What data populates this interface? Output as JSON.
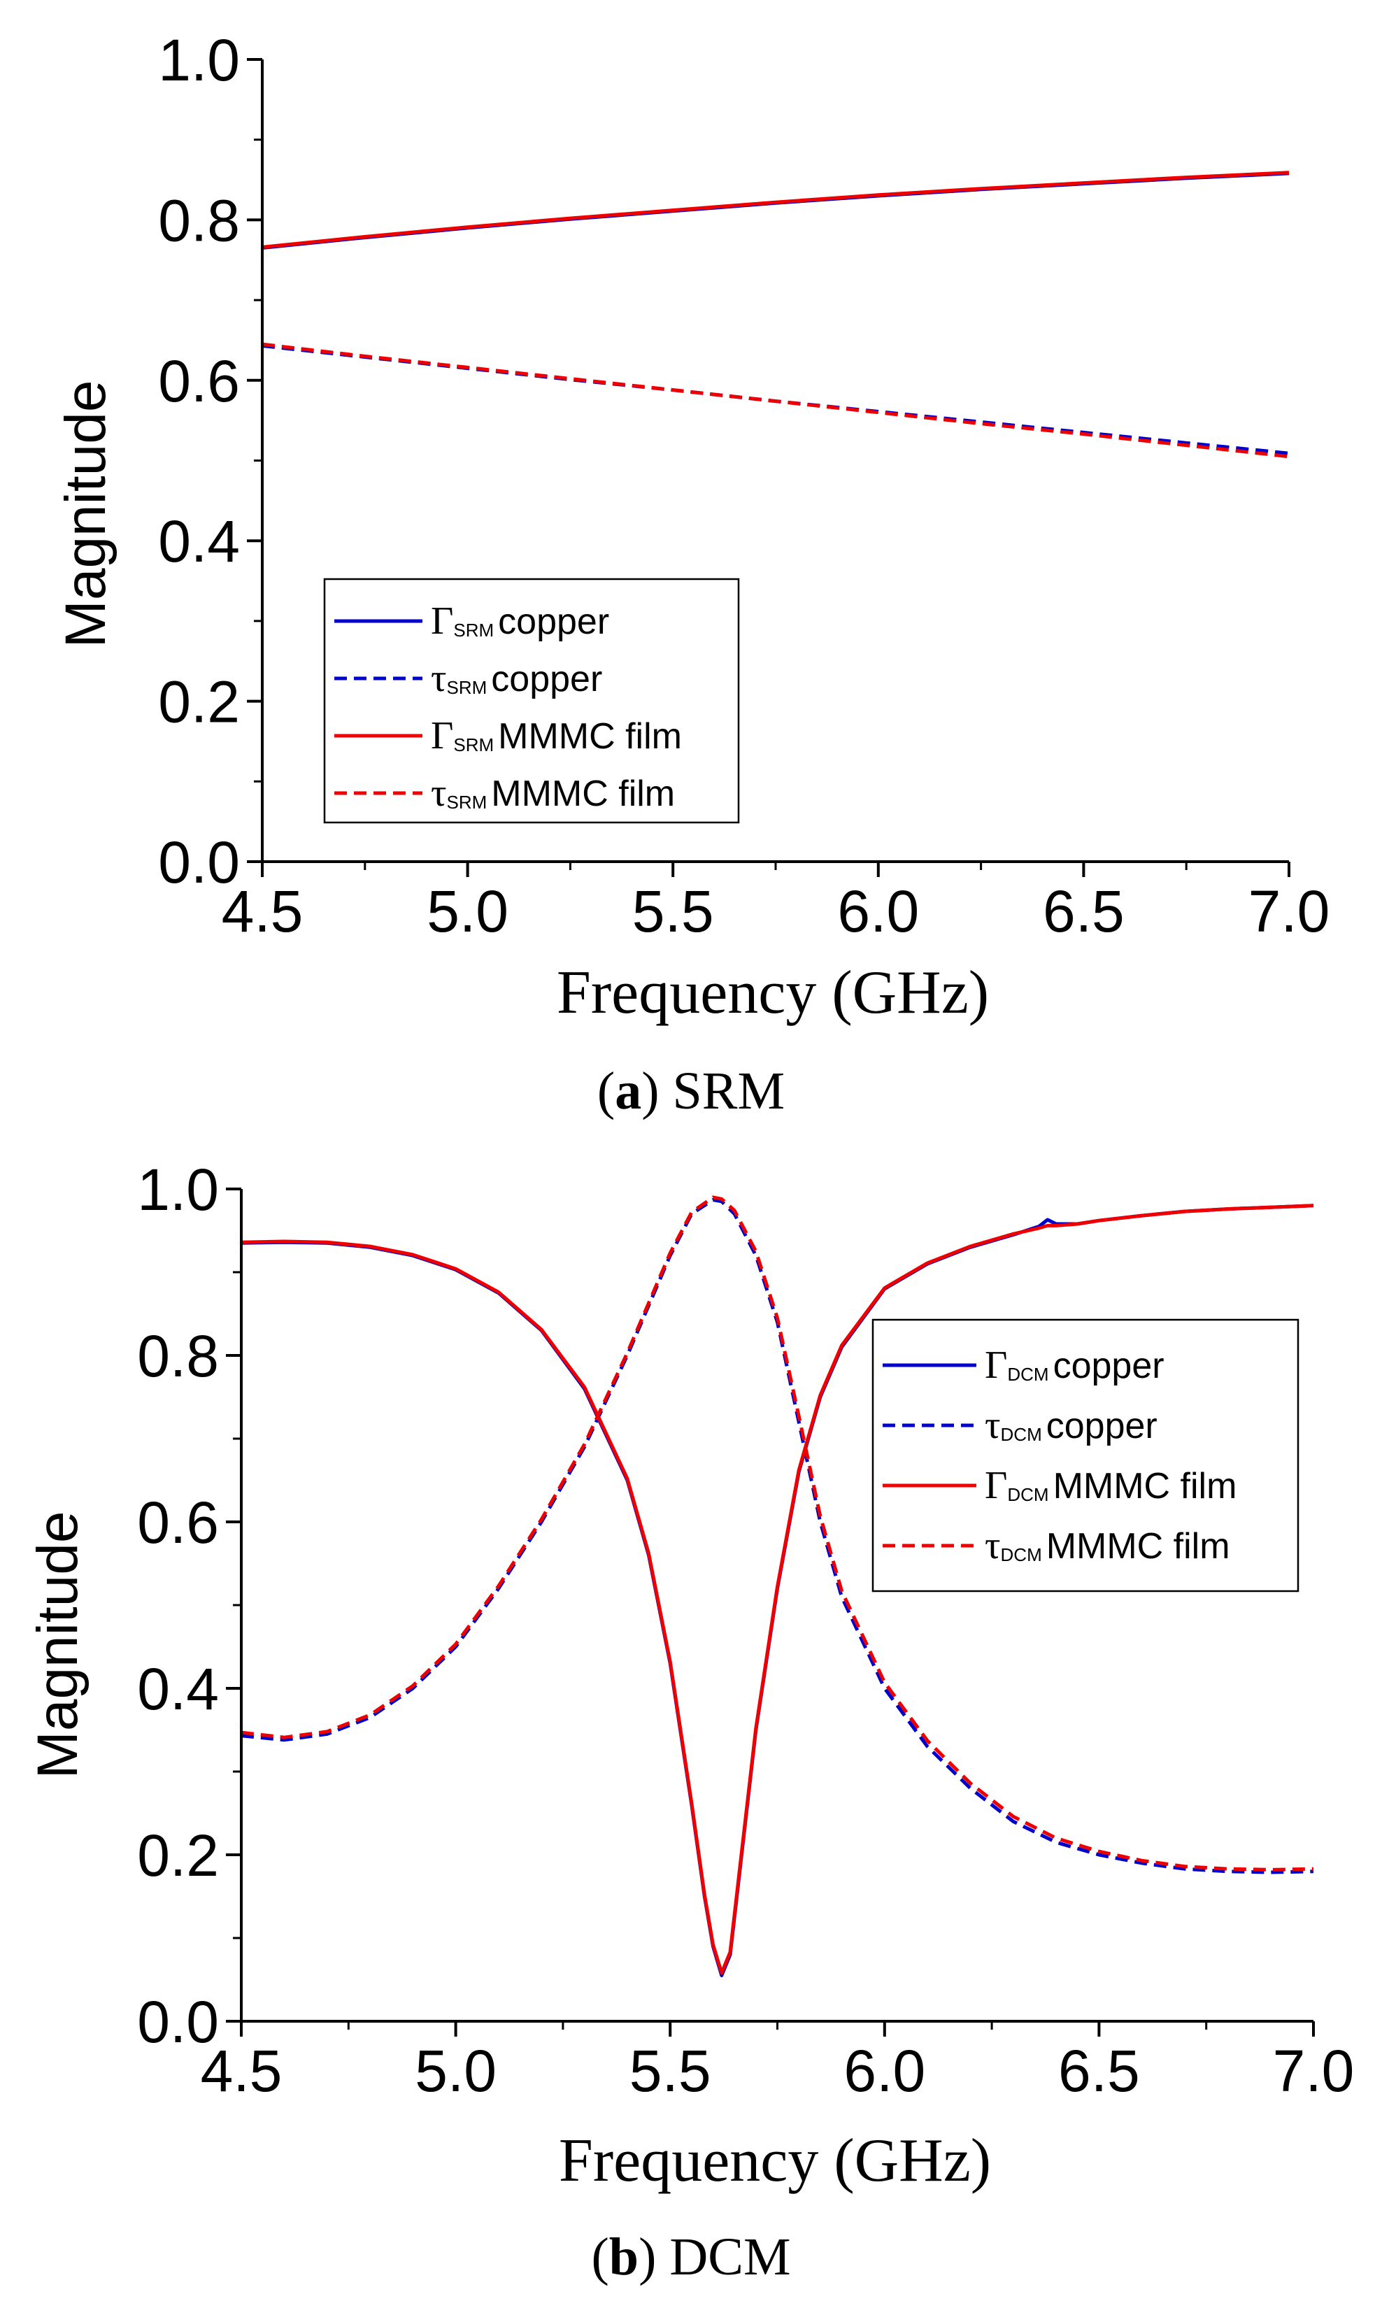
{
  "chart_data": [
    {
      "type": "line",
      "caption_letter": "a",
      "caption_text": " SRM",
      "xlabel": "Frequency (GHz)",
      "ylabel": "Magnitude",
      "xlim": [
        4.5,
        7.0
      ],
      "ylim": [
        0.0,
        1.0
      ],
      "xticks": [
        "4.5",
        "5.0",
        "5.5",
        "6.0",
        "6.5",
        "7.0"
      ],
      "yticks": [
        "0.0",
        "0.2",
        "0.4",
        "0.6",
        "0.8",
        "1.0"
      ],
      "grid": false,
      "legend_position": "bottom-left",
      "series": [
        {
          "symbol": "Γ",
          "subscript": "SRM",
          "label": "copper",
          "color": "#0000cc",
          "dash": "solid",
          "x": [
            4.5,
            4.75,
            5.0,
            5.25,
            5.5,
            5.75,
            6.0,
            6.25,
            6.5,
            6.75,
            7.0
          ],
          "y": [
            0.765,
            0.778,
            0.79,
            0.801,
            0.811,
            0.821,
            0.83,
            0.838,
            0.845,
            0.852,
            0.858
          ]
        },
        {
          "symbol": "τ",
          "subscript": "SRM",
          "label": "copper",
          "color": "#0000cc",
          "dash": "dashed",
          "x": [
            4.5,
            4.75,
            5.0,
            5.25,
            5.5,
            5.75,
            6.0,
            6.25,
            6.5,
            6.75,
            7.0
          ],
          "y": [
            0.643,
            0.629,
            0.615,
            0.601,
            0.588,
            0.574,
            0.561,
            0.548,
            0.535,
            0.522,
            0.509
          ]
        },
        {
          "symbol": "Γ",
          "subscript": "SRM",
          "label": "MMMC film",
          "color": "#ee0000",
          "dash": "solid",
          "x": [
            4.5,
            4.75,
            5.0,
            5.25,
            5.5,
            5.75,
            6.0,
            6.25,
            6.5,
            6.75,
            7.0
          ],
          "y": [
            0.766,
            0.779,
            0.791,
            0.802,
            0.812,
            0.822,
            0.831,
            0.839,
            0.846,
            0.853,
            0.859
          ]
        },
        {
          "symbol": "τ",
          "subscript": "SRM",
          "label": "MMMC film",
          "color": "#ee0000",
          "dash": "dashed",
          "x": [
            4.5,
            4.75,
            5.0,
            5.25,
            5.5,
            5.75,
            6.0,
            6.25,
            6.5,
            6.75,
            7.0
          ],
          "y": [
            0.645,
            0.63,
            0.616,
            0.602,
            0.588,
            0.574,
            0.56,
            0.546,
            0.533,
            0.519,
            0.505
          ]
        }
      ]
    },
    {
      "type": "line",
      "caption_letter": "b",
      "caption_text": " DCM",
      "xlabel": "Frequency (GHz)",
      "ylabel": "Magnitude",
      "xlim": [
        4.5,
        7.0
      ],
      "ylim": [
        0.0,
        1.0
      ],
      "xticks": [
        "4.5",
        "5.0",
        "5.5",
        "6.0",
        "6.5",
        "7.0"
      ],
      "yticks": [
        "0.0",
        "0.2",
        "0.4",
        "0.6",
        "0.8",
        "1.0"
      ],
      "grid": false,
      "legend_position": "top-right",
      "series": [
        {
          "symbol": "Γ",
          "subscript": "DCM",
          "label": "copper",
          "color": "#0000cc",
          "dash": "solid",
          "x": [
            4.5,
            4.6,
            4.7,
            4.8,
            4.9,
            5.0,
            5.1,
            5.2,
            5.3,
            5.4,
            5.45,
            5.5,
            5.55,
            5.58,
            5.6,
            5.62,
            5.64,
            5.66,
            5.7,
            5.75,
            5.8,
            5.85,
            5.9,
            6.0,
            6.1,
            6.2,
            6.3,
            6.36,
            6.38,
            6.4,
            6.45,
            6.5,
            6.6,
            6.7,
            6.8,
            6.9,
            7.0
          ],
          "y": [
            0.935,
            0.936,
            0.935,
            0.93,
            0.92,
            0.903,
            0.875,
            0.83,
            0.76,
            0.65,
            0.56,
            0.43,
            0.26,
            0.15,
            0.09,
            0.055,
            0.08,
            0.17,
            0.35,
            0.52,
            0.66,
            0.75,
            0.81,
            0.88,
            0.91,
            0.93,
            0.945,
            0.955,
            0.963,
            0.958,
            0.958,
            0.962,
            0.968,
            0.973,
            0.976,
            0.978,
            0.98
          ]
        },
        {
          "symbol": "τ",
          "subscript": "DCM",
          "label": "copper",
          "color": "#0000cc",
          "dash": "dashed",
          "x": [
            4.5,
            4.6,
            4.7,
            4.8,
            4.9,
            5.0,
            5.1,
            5.2,
            5.3,
            5.4,
            5.5,
            5.55,
            5.6,
            5.62,
            5.65,
            5.7,
            5.75,
            5.8,
            5.85,
            5.9,
            6.0,
            6.1,
            6.2,
            6.3,
            6.4,
            6.5,
            6.6,
            6.7,
            6.8,
            6.9,
            7.0
          ],
          "y": [
            0.343,
            0.338,
            0.345,
            0.365,
            0.4,
            0.45,
            0.52,
            0.6,
            0.69,
            0.8,
            0.92,
            0.97,
            0.987,
            0.985,
            0.97,
            0.92,
            0.84,
            0.72,
            0.6,
            0.51,
            0.4,
            0.33,
            0.28,
            0.24,
            0.215,
            0.2,
            0.19,
            0.183,
            0.18,
            0.179,
            0.18
          ]
        },
        {
          "symbol": "Γ",
          "subscript": "DCM",
          "label": "MMMC film",
          "color": "#ee0000",
          "dash": "solid",
          "x": [
            4.5,
            4.6,
            4.7,
            4.8,
            4.9,
            5.0,
            5.1,
            5.2,
            5.3,
            5.4,
            5.45,
            5.5,
            5.55,
            5.58,
            5.6,
            5.62,
            5.64,
            5.66,
            5.7,
            5.75,
            5.8,
            5.85,
            5.9,
            6.0,
            6.1,
            6.2,
            6.3,
            6.36,
            6.38,
            6.4,
            6.45,
            6.5,
            6.6,
            6.7,
            6.8,
            6.9,
            7.0
          ],
          "y": [
            0.936,
            0.937,
            0.936,
            0.931,
            0.921,
            0.904,
            0.876,
            0.831,
            0.762,
            0.652,
            0.562,
            0.432,
            0.262,
            0.152,
            0.092,
            0.058,
            0.083,
            0.173,
            0.352,
            0.522,
            0.662,
            0.752,
            0.812,
            0.881,
            0.911,
            0.931,
            0.946,
            0.953,
            0.956,
            0.956,
            0.958,
            0.962,
            0.968,
            0.973,
            0.976,
            0.978,
            0.98
          ]
        },
        {
          "symbol": "τ",
          "subscript": "DCM",
          "label": "MMMC film",
          "color": "#ee0000",
          "dash": "dashed",
          "x": [
            4.5,
            4.6,
            4.7,
            4.8,
            4.9,
            5.0,
            5.1,
            5.2,
            5.3,
            5.4,
            5.5,
            5.55,
            5.6,
            5.62,
            5.65,
            5.7,
            5.75,
            5.8,
            5.85,
            5.9,
            6.0,
            6.1,
            6.2,
            6.3,
            6.4,
            6.5,
            6.6,
            6.7,
            6.8,
            6.9,
            7.0
          ],
          "y": [
            0.347,
            0.341,
            0.348,
            0.368,
            0.403,
            0.453,
            0.523,
            0.603,
            0.693,
            0.803,
            0.923,
            0.972,
            0.99,
            0.988,
            0.974,
            0.925,
            0.845,
            0.727,
            0.607,
            0.517,
            0.407,
            0.337,
            0.286,
            0.246,
            0.22,
            0.204,
            0.193,
            0.186,
            0.183,
            0.182,
            0.183
          ]
        }
      ]
    }
  ]
}
